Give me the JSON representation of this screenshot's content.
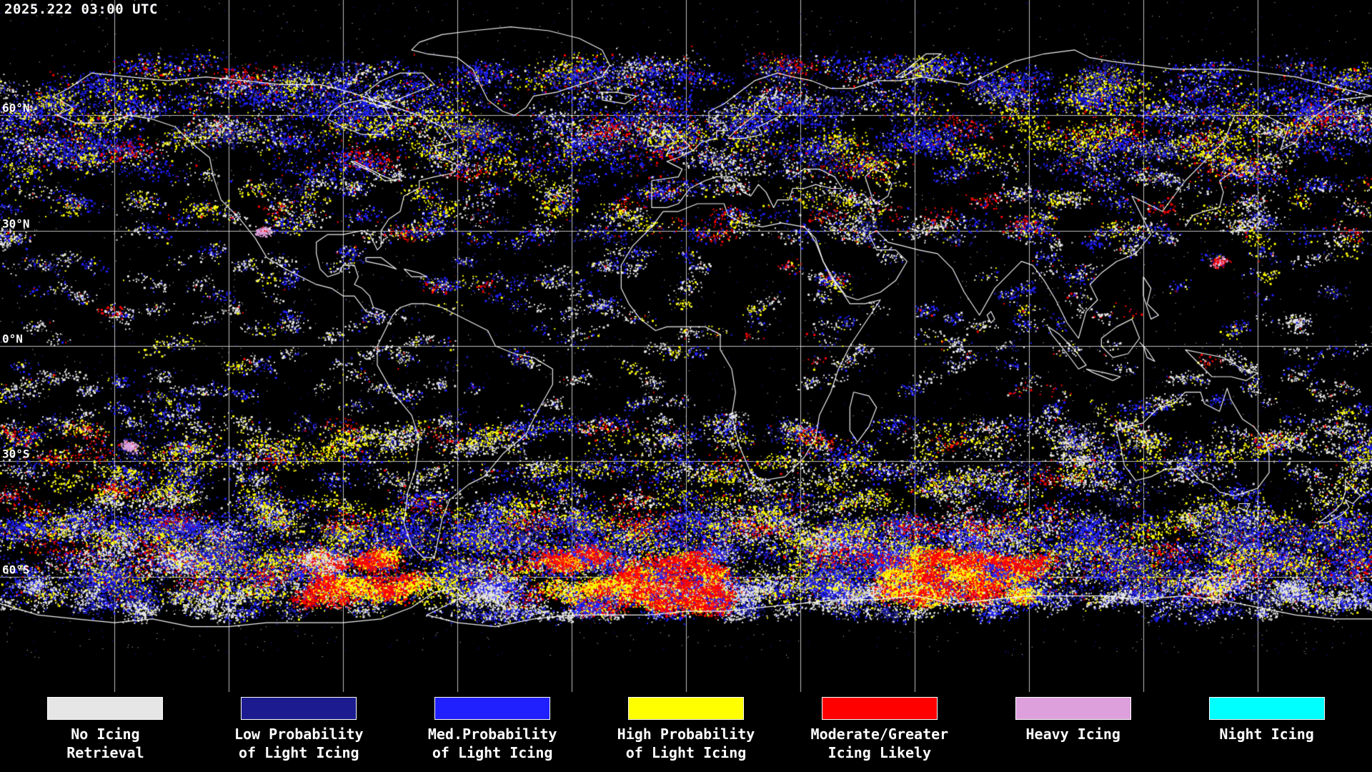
{
  "header": {
    "timestamp": "2025.222 03:00 UTC"
  },
  "map": {
    "background": "#000000",
    "grid_color": "#ffffff",
    "coastline_color": "#ffffff",
    "lat_labels": [
      {
        "label": "60°N",
        "lat": 60
      },
      {
        "label": "30°N",
        "lat": 30
      },
      {
        "label": "0°N",
        "lat": 0
      },
      {
        "label": "30°S",
        "lat": -30
      },
      {
        "label": "60°S",
        "lat": -60
      }
    ]
  },
  "legend": {
    "items": [
      {
        "id": "no-icing",
        "color": "#e6e6e6",
        "line1": "No Icing",
        "line2": "Retrieval"
      },
      {
        "id": "low-prob",
        "color": "#1c1c90",
        "line1": "Low Probability",
        "line2": "of Light Icing"
      },
      {
        "id": "med-prob",
        "color": "#2020ff",
        "line1": "Med.Probability",
        "line2": "of Light Icing"
      },
      {
        "id": "high-prob",
        "color": "#ffff00",
        "line1": "High Probability",
        "line2": "of Light Icing"
      },
      {
        "id": "mod-greater",
        "color": "#ff0000",
        "line1": "Moderate/Greater",
        "line2": "Icing Likely"
      },
      {
        "id": "heavy",
        "color": "#dda0dd",
        "line1": "Heavy Icing",
        "line2": ""
      },
      {
        "id": "night",
        "color": "#00ffff",
        "line1": "Night Icing",
        "line2": ""
      }
    ]
  }
}
